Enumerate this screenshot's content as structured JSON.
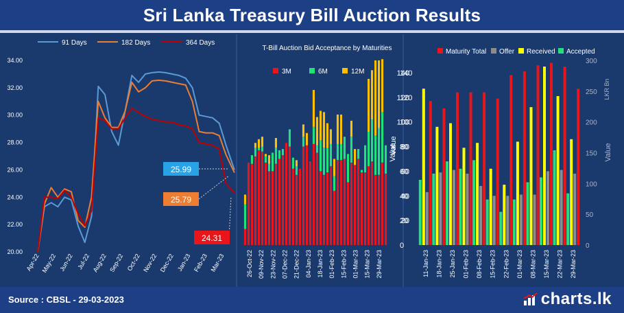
{
  "header": {
    "title": "Sri Lanka Treasury Bill Auction Results"
  },
  "footer": {
    "source": "Source : CBSL - 29-03-2023",
    "brand": "charts.lk"
  },
  "colors": {
    "background": "#1a3a6e",
    "title_bar": "#1c3f86",
    "series91": "#5b9bd5",
    "series182": "#ed7d31",
    "series364": "#c00000",
    "bar3M": "#e8161a",
    "bar6M": "#22e07a",
    "bar12M": "#ffc000",
    "maturity": "#e8161a",
    "offer": "#8c8c8c",
    "received": "#ffff00",
    "accepted": "#22e07a",
    "callout91": "#29a3e8",
    "callout182": "#ed7d31",
    "callout364": "#e8161a"
  },
  "chart_data": [
    {
      "type": "line",
      "x_ticks": [
        "Apr-22",
        "May-22",
        "Jun-22",
        "Jul-22",
        "Aug-22",
        "Sep-22",
        "Oct-22",
        "Nov-22",
        "Dec-22",
        "Jan-23",
        "Feb-23",
        "Mar-23"
      ],
      "ylim": [
        20,
        34
      ],
      "y_ticks": [
        "20.00",
        "22.00",
        "24.00",
        "26.00",
        "28.00",
        "30.00",
        "32.00",
        "34.00"
      ],
      "x_index": [
        0,
        0.4,
        0.8,
        1.2,
        1.6,
        2.0,
        2.4,
        2.8,
        3.2,
        3.6,
        4.0,
        4.4,
        4.8,
        5.2,
        5.6,
        6.0,
        6.4,
        6.8,
        7.2,
        7.6,
        8.0,
        8.4,
        8.8,
        9.2,
        9.6,
        10.0,
        10.4,
        10.8,
        11.2,
        11.7
      ],
      "series": [
        {
          "name": "91 Days",
          "values": [
            20.0,
            23.3,
            23.6,
            23.3,
            24.0,
            23.8,
            21.9,
            20.7,
            22.6,
            32.1,
            31.5,
            28.8,
            27.8,
            30.3,
            32.9,
            32.4,
            33.0,
            33.1,
            33.15,
            33.1,
            33.0,
            32.9,
            32.7,
            32.0,
            30.0,
            29.9,
            29.8,
            29.4,
            27.8,
            25.99
          ]
        },
        {
          "name": "182 Days",
          "values": [
            20.0,
            23.5,
            24.7,
            24.0,
            24.6,
            24.4,
            22.3,
            21.8,
            24.0,
            31.0,
            29.8,
            29.1,
            29.1,
            30.3,
            32.4,
            31.7,
            32.0,
            32.5,
            32.55,
            32.5,
            32.4,
            32.3,
            32.2,
            31.0,
            28.8,
            28.7,
            28.7,
            28.5,
            27.1,
            25.79
          ]
        },
        {
          "name": "364 Days",
          "values": [
            20.0,
            24.0,
            24.0,
            23.9,
            24.5,
            24.0,
            22.8,
            21.9,
            23.0,
            29.8,
            29.6,
            29.0,
            29.0,
            29.8,
            30.5,
            30.2,
            29.9,
            29.7,
            29.6,
            29.5,
            29.5,
            29.3,
            29.2,
            29.0,
            28.0,
            27.9,
            27.8,
            27.5,
            25.0,
            24.31
          ]
        }
      ],
      "callouts": [
        "25.99",
        "25.79",
        "24.31"
      ]
    },
    {
      "type": "bar",
      "stacked": true,
      "title": "T-Bill Auction Bid Acceptance by Maturities",
      "ylabel": "Value",
      "ylim": [
        0,
        150
      ],
      "y_ticks": [
        "0",
        "20",
        "40",
        "60",
        "80",
        "100",
        "120",
        "140"
      ],
      "x_tick_labels": [
        "26-Oct-22",
        "09-Nov-22",
        "23-Nov-22",
        "07-Dec-22",
        "21-Dec-22",
        "04-Jan-23",
        "18-Jan-23",
        "01-Feb-23",
        "15-Feb-23",
        "01-Mar-23",
        "15-Mar-23",
        "29-Mar-23"
      ],
      "series": [
        {
          "name": "3M",
          "values": [
            13,
            67,
            66,
            72,
            77,
            76,
            67,
            60,
            60,
            66,
            70,
            73,
            83,
            80,
            62,
            57,
            62,
            80,
            81,
            68,
            82,
            75,
            60,
            57,
            59,
            64,
            44,
            69,
            69,
            70,
            51,
            67,
            65,
            70,
            59,
            59,
            64,
            68,
            57,
            57,
            67,
            58
          ]
        },
        {
          "name": "6M",
          "values": [
            20,
            0,
            7,
            7,
            2,
            4,
            5,
            6,
            15,
            13,
            7,
            5,
            0,
            14,
            9,
            7,
            0,
            8,
            0,
            0,
            14,
            6,
            25,
            22,
            20,
            18,
            12,
            13,
            13,
            18,
            23,
            21,
            0,
            8,
            2,
            22,
            28,
            34,
            32,
            38,
            41,
            23
          ]
        },
        {
          "name": "12M",
          "values": [
            8,
            0,
            0,
            4,
            7,
            8,
            2,
            7,
            0,
            8,
            0,
            0,
            0,
            0,
            0,
            5,
            0,
            10,
            10,
            0,
            30,
            23,
            24,
            29,
            20,
            12,
            14,
            24,
            24,
            0,
            0,
            13,
            13,
            0,
            0,
            0,
            43,
            40,
            61,
            55,
            43,
            0
          ]
        }
      ]
    },
    {
      "type": "bar",
      "ylabel": "Value",
      "y2label": "LKR Bn",
      "ylim": [
        0,
        150
      ],
      "y_ticks": [
        "20",
        "40",
        "60",
        "80",
        "100",
        "120",
        "140"
      ],
      "y2_ticks": [
        "0",
        "50",
        "100",
        "150",
        "200",
        "250",
        "300"
      ],
      "categories": [
        "11-Jan-23",
        "18-Jan-23",
        "25-Jan-23",
        "01-Feb-23",
        "08-Feb-23",
        "15-Feb-23",
        "22-Feb-23",
        "01-Mar-23",
        "08-Mar-23",
        "15-Mar-23",
        "22-Mar-23",
        "29-Mar-23"
      ],
      "x_tick_labels": [
        "11-Jan-23",
        "18-Jan-23",
        "25-Jan-23",
        "01-Feb-23",
        "08-Feb-23",
        "15-Feb-23",
        "22-Feb-23",
        "01-Mar-23",
        "08-Mar-23",
        "15-Mar-23",
        "22-Mar-23",
        "29-Mar-23"
      ],
      "series": [
        {
          "name": "Maturity Total",
          "values": [
            117,
            111,
            124,
            124,
            124,
            119,
            138,
            141,
            146,
            148,
            145,
            127
          ]
        },
        {
          "name": "Offer",
          "values": [
            43,
            59,
            61,
            58,
            48,
            40,
            40,
            41,
            41,
            60,
            61,
            58
          ]
        },
        {
          "name": "Received",
          "values": [
            127,
            96,
            99,
            79,
            83,
            62,
            49,
            84,
            112,
            145,
            121,
            86
          ]
        },
        {
          "name": "Accepted",
          "values": [
            53,
            58,
            68,
            62,
            69,
            37,
            27,
            37,
            51,
            55,
            77,
            42
          ]
        }
      ]
    }
  ]
}
